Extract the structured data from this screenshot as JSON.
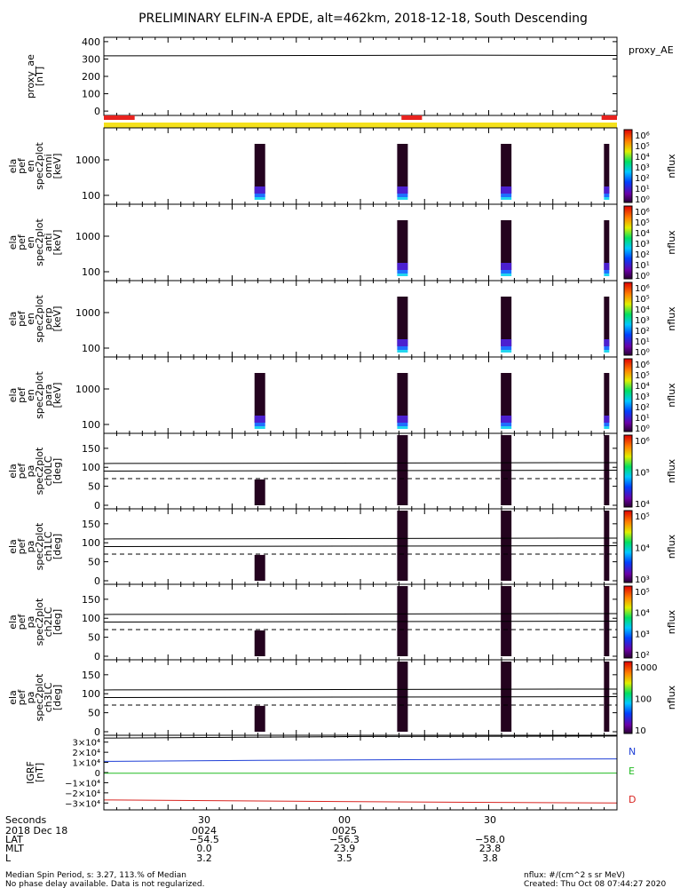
{
  "title": "PRELIMINARY ELFIN-A EPDE, alt=462km, 2018-12-18, South Descending",
  "colors": {
    "red_bar": "#e8231f",
    "yellow_bar": "#f5e11c",
    "N": "#1f3fd6",
    "E": "#22bb22",
    "D": "#d8231f",
    "column": "#24031f"
  },
  "chart_data": [
    {
      "type": "line",
      "name": "proxy_ae",
      "ylabel": [
        "proxy_ae",
        "[nT]"
      ],
      "legend": "proxy_AE",
      "yticks": [
        400,
        300,
        200,
        100,
        0
      ],
      "ylim": [
        -25,
        425
      ],
      "series": [
        {
          "name": "proxy_AE",
          "x": [
            0.0,
            0.4,
            0.7,
            1.0
          ],
          "y": [
            318,
            320,
            322,
            320
          ]
        }
      ]
    },
    {
      "type": "bar",
      "name": "orbit-indicator",
      "red_segments": [
        [
          0.0,
          0.06
        ],
        [
          0.58,
          0.62
        ],
        [
          0.97,
          1.0
        ]
      ],
      "yellow_band": [
        0.0,
        1.0
      ]
    },
    {
      "type": "heatmap",
      "name": "ela_pef_en_spec2plot_omni",
      "ylabel": [
        "ela",
        "pef",
        "en",
        "spec2plot",
        "omni",
        "[keV]"
      ],
      "yticks": [
        "1000",
        "100"
      ],
      "colorbar_ticks": [
        "10⁶",
        "10⁵",
        "10⁴",
        "10³",
        "10²",
        "10¹",
        "10⁰"
      ],
      "colorbar_label": "nflux",
      "columns": [
        0.304,
        0.582,
        0.784,
        0.985
      ]
    },
    {
      "type": "heatmap",
      "name": "ela_pef_en_spec2plot_anti",
      "ylabel": [
        "ela",
        "pef",
        "en",
        "spec2plot",
        "anti",
        "[keV]"
      ],
      "yticks": [
        "1000",
        "100"
      ],
      "colorbar_ticks": [
        "10⁶",
        "10⁵",
        "10⁴",
        "10³",
        "10²",
        "10¹",
        "10⁰"
      ],
      "colorbar_label": "nflux",
      "columns": [
        0.582,
        0.784,
        0.985
      ]
    },
    {
      "type": "heatmap",
      "name": "ela_pef_en_spec2plot_perp",
      "ylabel": [
        "ela",
        "pef",
        "en",
        "spec2plot",
        "perp",
        "[keV]"
      ],
      "yticks": [
        "1000",
        "100"
      ],
      "colorbar_ticks": [
        "10⁶",
        "10⁵",
        "10⁴",
        "10³",
        "10²",
        "10¹",
        "10⁰"
      ],
      "colorbar_label": "nflux",
      "columns": [
        0.582,
        0.784,
        0.985
      ]
    },
    {
      "type": "heatmap",
      "name": "ela_pef_en_spec2plot_para",
      "ylabel": [
        "ela",
        "pef",
        "en",
        "spec2plot",
        "para",
        "[keV]"
      ],
      "yticks": [
        "1000",
        "100"
      ],
      "colorbar_ticks": [
        "10⁶",
        "10⁵",
        "10⁴",
        "10³",
        "10²",
        "10¹",
        "10⁰"
      ],
      "colorbar_label": "nflux",
      "columns": [
        0.304,
        0.582,
        0.784,
        0.985
      ]
    },
    {
      "type": "heatmap",
      "name": "ela_pef_pa_spec2plot_ch0LC",
      "ylabel": [
        "ela",
        "pef",
        "pa",
        "spec2plot",
        "ch0LC",
        "[deg]"
      ],
      "yticks": [
        150,
        100,
        50,
        0
      ],
      "ylim": [
        0,
        180
      ],
      "colorbar_ticks": [
        "10⁶",
        "10⁵",
        "10⁴"
      ],
      "colorbar_label": "nflux",
      "lines_solid": [
        110,
        90
      ],
      "line_dashed": 70
    },
    {
      "type": "heatmap",
      "name": "ela_pef_pa_spec2plot_ch1LC",
      "ylabel": [
        "ela",
        "pef",
        "pa",
        "spec2plot",
        "ch1LC",
        "[deg]"
      ],
      "yticks": [
        150,
        100,
        50,
        0
      ],
      "ylim": [
        0,
        180
      ],
      "colorbar_ticks": [
        "10⁵",
        "10⁴",
        "10³"
      ],
      "colorbar_label": "nflux",
      "lines_solid": [
        110,
        90
      ],
      "line_dashed": 70
    },
    {
      "type": "heatmap",
      "name": "ela_pef_pa_spec2plot_ch2LC",
      "ylabel": [
        "ela",
        "pef",
        "pa",
        "spec2plot",
        "ch2LC",
        "[deg]"
      ],
      "yticks": [
        150,
        100,
        50,
        0
      ],
      "ylim": [
        0,
        180
      ],
      "colorbar_ticks": [
        "10⁵",
        "10⁴",
        "10³",
        "10²"
      ],
      "colorbar_label": "nflux",
      "lines_solid": [
        110,
        90
      ],
      "line_dashed": 70
    },
    {
      "type": "heatmap",
      "name": "ela_pef_pa_spec2plot_ch3LC",
      "ylabel": [
        "ela",
        "pef",
        "pa",
        "spec2plot",
        "ch3LC",
        "[deg]"
      ],
      "yticks": [
        150,
        100,
        50,
        0
      ],
      "ylim": [
        0,
        180
      ],
      "colorbar_ticks": [
        "1000",
        "100",
        "10"
      ],
      "colorbar_label": "nflux",
      "lines_solid": [
        110,
        90
      ],
      "line_dashed": 70
    },
    {
      "type": "line",
      "name": "IGRF",
      "ylabel": [
        "IGRF",
        "[nT]"
      ],
      "yticks": [
        "3×10⁴",
        "2×10⁴",
        "1×10⁴",
        "0",
        "−1×10⁴",
        "−2×10⁴",
        "−3×10⁴"
      ],
      "ylim": [
        -35000,
        35000
      ],
      "series": [
        {
          "name": "N",
          "x": [
            0,
            0.3,
            0.5,
            0.7,
            1.0
          ],
          "y": [
            11000,
            12000,
            12500,
            13000,
            13500
          ]
        },
        {
          "name": "E",
          "x": [
            0,
            0.5,
            1.0
          ],
          "y": [
            -700,
            -650,
            -600
          ]
        },
        {
          "name": "D",
          "x": [
            0,
            0.3,
            0.6,
            1.0
          ],
          "y": [
            -27000,
            -28000,
            -29000,
            -30000
          ]
        },
        {
          "name": "",
          "x": [
            0,
            0.5,
            1.0
          ],
          "y": [
            34000,
            35500,
            36000
          ]
        }
      ]
    }
  ],
  "bottom_table": {
    "labels": [
      "Seconds",
      "2018 Dec 18",
      "LAT",
      "MLT",
      "L"
    ],
    "columns": [
      {
        "vals": [
          "30",
          "0024",
          "−54.5",
          "0.0",
          "3.2"
        ]
      },
      {
        "vals": [
          "00",
          "0025",
          "−56.3",
          "23.9",
          "3.5"
        ]
      },
      {
        "vals": [
          "30",
          "",
          "−58.0",
          "23.8",
          "3.8"
        ]
      }
    ]
  },
  "footer": {
    "left1": "Median Spin Period, s: 3.27, 113.% of Median",
    "left2": "No phase delay available. Data is not regularized.",
    "right1": "nflux: #/(cm^2 s sr MeV)",
    "right2": "Created: Thu Oct 08 07:44:27 2020"
  }
}
